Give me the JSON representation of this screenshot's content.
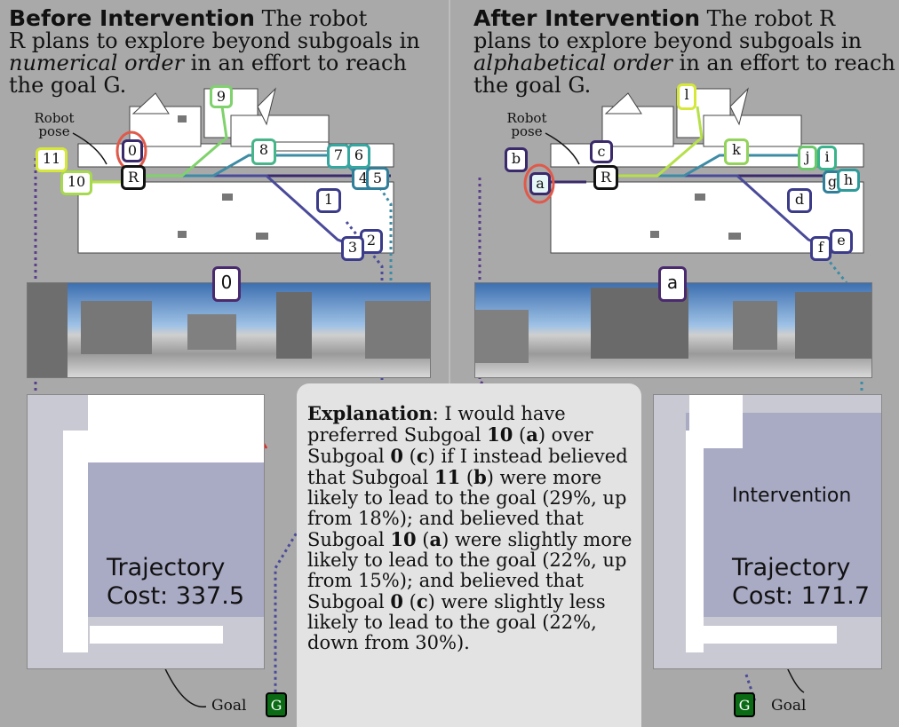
{
  "left": {
    "title_bold": "Before Intervention",
    "title_rest_1": " The robot",
    "title_line2": "R plans to explore beyond subgoals in",
    "title_italic": "numerical order",
    "title_line3_rest": " in an effort to reach",
    "title_line4": "the goal G.",
    "robot_label_1": "Robot",
    "robot_label_2": "pose",
    "robot": "R",
    "subgoals": [
      "0",
      "1",
      "2",
      "3",
      "4",
      "5",
      "6",
      "7",
      "8",
      "9",
      "10",
      "11"
    ],
    "photo_marker": "0",
    "traj_line1": "Trajectory",
    "traj_line2": "Cost: 337.5",
    "goal_label": "Goal",
    "goal_box": "G"
  },
  "right": {
    "title_bold": "After Intervention",
    "title_rest_1": " The robot R",
    "title_line2": "plans to explore beyond subgoals in",
    "title_italic": "alphabetical order",
    "title_line3_rest": " in an effort to reach",
    "title_line4": "the goal G.",
    "robot_label_1": "Robot",
    "robot_label_2": "pose",
    "robot": "R",
    "subgoals": [
      "a",
      "b",
      "c",
      "d",
      "e",
      "f",
      "g",
      "h",
      "i",
      "j",
      "k",
      "l"
    ],
    "photo_marker": "a",
    "interv_label": "Intervention",
    "traj_line1": "Trajectory",
    "traj_line2": "Cost: 171.7",
    "goal_label": "Goal",
    "goal_box": "G"
  },
  "explanation": {
    "label": "Explanation",
    "p1": ": I would have preferred Subgoal ",
    "b1": "10",
    "p2": " (",
    "b2": "a",
    "p3": ") over Subgoal ",
    "b3": "0",
    "p4": " (",
    "b4": "c",
    "p5": ") if I instead believed that Subgoal ",
    "b5": "11",
    "p6": " (",
    "b6": "b",
    "p7": ") were more likely to lead to the goal (29%, up from 18%); and believed that Subgoal ",
    "b7": "10",
    "p8": " (",
    "b8": "a",
    "p9": ") were slightly more likely to lead to the goal (22%, up from 15%); and believed that Subgoal ",
    "b9": "0",
    "p10": " (",
    "b10": "c",
    "p11": ") were slightly less likely to lead to the goal (22%, down from 30%)."
  },
  "colors": {
    "background": "#a9a9a9",
    "goal_green": "#0a6b14",
    "path_red": "#e8241d",
    "intervention_magenta": "#c22ad0"
  }
}
